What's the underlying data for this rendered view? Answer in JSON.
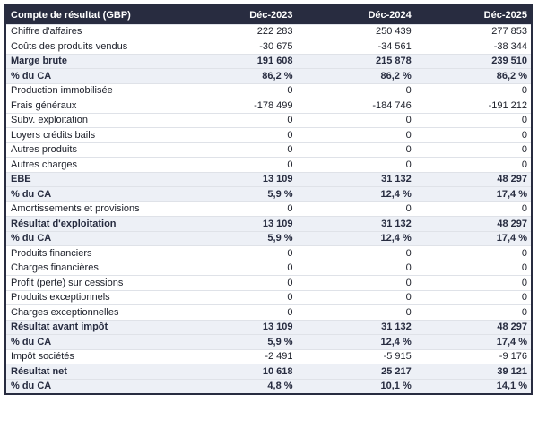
{
  "table": {
    "header": {
      "label": "Compte de résultat (GBP)",
      "columns": [
        "Déc-2023",
        "Déc-2024",
        "Déc-2025"
      ]
    },
    "rows": [
      {
        "label": "Chiffre d'affaires",
        "values": [
          "222 283",
          "250 439",
          "277 853"
        ],
        "style": "normal"
      },
      {
        "label": "Coûts des produits vendus",
        "values": [
          "-30 675",
          "-34 561",
          "-38 344"
        ],
        "style": "normal"
      },
      {
        "label": "Marge brute",
        "values": [
          "191 608",
          "215 878",
          "239 510"
        ],
        "style": "total"
      },
      {
        "label": "% du CA",
        "values": [
          "86,2 %",
          "86,2 %",
          "86,2 %"
        ],
        "style": "total"
      },
      {
        "label": "Production immobilisée",
        "values": [
          "0",
          "0",
          "0"
        ],
        "style": "normal"
      },
      {
        "label": "Frais généraux",
        "values": [
          "-178 499",
          "-184 746",
          "-191 212"
        ],
        "style": "normal"
      },
      {
        "label": "Subv. exploitation",
        "values": [
          "0",
          "0",
          "0"
        ],
        "style": "normal"
      },
      {
        "label": "Loyers crédits bails",
        "values": [
          "0",
          "0",
          "0"
        ],
        "style": "normal"
      },
      {
        "label": "Autres produits",
        "values": [
          "0",
          "0",
          "0"
        ],
        "style": "normal"
      },
      {
        "label": "Autres charges",
        "values": [
          "0",
          "0",
          "0"
        ],
        "style": "normal"
      },
      {
        "label": "EBE",
        "values": [
          "13 109",
          "31 132",
          "48 297"
        ],
        "style": "total"
      },
      {
        "label": "% du CA",
        "values": [
          "5,9 %",
          "12,4 %",
          "17,4 %"
        ],
        "style": "total"
      },
      {
        "label": "Amortissements et provisions",
        "values": [
          "0",
          "0",
          "0"
        ],
        "style": "normal"
      },
      {
        "label": "Résultat d'exploitation",
        "values": [
          "13 109",
          "31 132",
          "48 297"
        ],
        "style": "total"
      },
      {
        "label": "% du CA",
        "values": [
          "5,9 %",
          "12,4 %",
          "17,4 %"
        ],
        "style": "total"
      },
      {
        "label": "Produits financiers",
        "values": [
          "0",
          "0",
          "0"
        ],
        "style": "normal"
      },
      {
        "label": "Charges financières",
        "values": [
          "0",
          "0",
          "0"
        ],
        "style": "normal"
      },
      {
        "label": "Profit (perte) sur cessions",
        "values": [
          "0",
          "0",
          "0"
        ],
        "style": "normal"
      },
      {
        "label": "Produits exceptionnels",
        "values": [
          "0",
          "0",
          "0"
        ],
        "style": "normal"
      },
      {
        "label": "Charges exceptionnelles",
        "values": [
          "0",
          "0",
          "0"
        ],
        "style": "normal"
      },
      {
        "label": "Résultat avant impôt",
        "values": [
          "13 109",
          "31 132",
          "48 297"
        ],
        "style": "total"
      },
      {
        "label": "% du CA",
        "values": [
          "5,9 %",
          "12,4 %",
          "17,4 %"
        ],
        "style": "total"
      },
      {
        "label": "Impôt sociétés",
        "values": [
          "-2 491",
          "-5 915",
          "-9 176"
        ],
        "style": "normal"
      },
      {
        "label": "Résultat net",
        "values": [
          "10 618",
          "25 217",
          "39 121"
        ],
        "style": "total"
      },
      {
        "label": "% du CA",
        "values": [
          "4,8 %",
          "10,1 %",
          "14,1 %"
        ],
        "style": "total"
      }
    ],
    "colors": {
      "header_bg": "#282c40",
      "header_text": "#ffffff",
      "total_row_bg": "#edf0f6",
      "total_row_text": "#272c40",
      "normal_row_bg": "#ffffff",
      "normal_row_text": "#1b1e28",
      "row_divider": "#dfe2e8",
      "outer_border": "#282c40"
    }
  },
  "chart_data": {
    "type": "table",
    "title": "Compte de résultat (GBP)",
    "columns": [
      "Déc-2023",
      "Déc-2024",
      "Déc-2025"
    ],
    "rows": [
      {
        "name": "Chiffre d'affaires",
        "values": [
          222283,
          250439,
          277853
        ]
      },
      {
        "name": "Coûts des produits vendus",
        "values": [
          -30675,
          -34561,
          -38344
        ]
      },
      {
        "name": "Marge brute",
        "values": [
          191608,
          215878,
          239510
        ]
      },
      {
        "name": "% du CA (marge brute)",
        "values": [
          86.2,
          86.2,
          86.2
        ],
        "unit": "%"
      },
      {
        "name": "Production immobilisée",
        "values": [
          0,
          0,
          0
        ]
      },
      {
        "name": "Frais généraux",
        "values": [
          -178499,
          -184746,
          -191212
        ]
      },
      {
        "name": "Subv. exploitation",
        "values": [
          0,
          0,
          0
        ]
      },
      {
        "name": "Loyers crédits bails",
        "values": [
          0,
          0,
          0
        ]
      },
      {
        "name": "Autres produits",
        "values": [
          0,
          0,
          0
        ]
      },
      {
        "name": "Autres charges",
        "values": [
          0,
          0,
          0
        ]
      },
      {
        "name": "EBE",
        "values": [
          13109,
          31132,
          48297
        ]
      },
      {
        "name": "% du CA (EBE)",
        "values": [
          5.9,
          12.4,
          17.4
        ],
        "unit": "%"
      },
      {
        "name": "Amortissements et provisions",
        "values": [
          0,
          0,
          0
        ]
      },
      {
        "name": "Résultat d'exploitation",
        "values": [
          13109,
          31132,
          48297
        ]
      },
      {
        "name": "% du CA (résultat d'exploitation)",
        "values": [
          5.9,
          12.4,
          17.4
        ],
        "unit": "%"
      },
      {
        "name": "Produits financiers",
        "values": [
          0,
          0,
          0
        ]
      },
      {
        "name": "Charges financières",
        "values": [
          0,
          0,
          0
        ]
      },
      {
        "name": "Profit (perte) sur cessions",
        "values": [
          0,
          0,
          0
        ]
      },
      {
        "name": "Produits exceptionnels",
        "values": [
          0,
          0,
          0
        ]
      },
      {
        "name": "Charges exceptionnelles",
        "values": [
          0,
          0,
          0
        ]
      },
      {
        "name": "Résultat avant impôt",
        "values": [
          13109,
          31132,
          48297
        ]
      },
      {
        "name": "% du CA (résultat avant impôt)",
        "values": [
          5.9,
          12.4,
          17.4
        ],
        "unit": "%"
      },
      {
        "name": "Impôt sociétés",
        "values": [
          -2491,
          -5915,
          -9176
        ]
      },
      {
        "name": "Résultat net",
        "values": [
          10618,
          25217,
          39121
        ]
      },
      {
        "name": "% du CA (résultat net)",
        "values": [
          4.8,
          10.1,
          14.1
        ],
        "unit": "%"
      }
    ]
  }
}
